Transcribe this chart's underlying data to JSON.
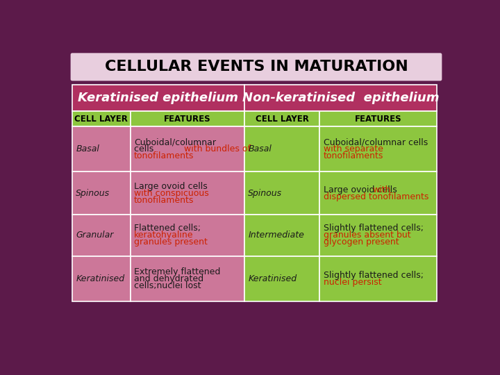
{
  "title": "CELLULAR EVENTS IN MATURATION",
  "title_bg": "#e8cede",
  "page_bg": "#5c1a4a",
  "header1": "Keratinised epithelium",
  "header2": "Non-keratinised  epithelium",
  "header_bg": "#b03060",
  "header_text_color": "white",
  "col_headers": [
    "CELL LAYER",
    "FEATURES",
    "CELL LAYER",
    "FEATURES"
  ],
  "col_header_bg": "#8dc63f",
  "col_header_text": "black",
  "left_col_bg": "#cc7799",
  "right_col_bg": "#8dc63f",
  "border_color": "white",
  "red_color": "#cc2200",
  "black_color": "#1a1a1a",
  "rows": [
    {
      "col1": "Basal",
      "col2_lines": [
        {
          "text": "Cuboidal/columnar",
          "color": "black"
        },
        {
          "text": "cells ",
          "color": "black",
          "append": "with bundles of",
          "append_color": "red"
        },
        {
          "text": "tonofilaments",
          "color": "red"
        }
      ],
      "col3": "Basal",
      "col4_lines": [
        {
          "text": "Cuboidal/columnar cells",
          "color": "black"
        },
        {
          "text": "with separate",
          "color": "red"
        },
        {
          "text": "tonofilaments",
          "color": "red"
        }
      ]
    },
    {
      "col1": "Spinous",
      "col2_lines": [
        {
          "text": "Large ovoid cells",
          "color": "black"
        },
        {
          "text": "with conspicuous",
          "color": "red"
        },
        {
          "text": "tonofilaments",
          "color": "red"
        }
      ],
      "col3": "Spinous",
      "col4_lines": [
        {
          "text": "Large ovoid cells ",
          "color": "black",
          "append": "with",
          "append_color": "red"
        },
        {
          "text": "dispersed tonofilaments",
          "color": "red"
        }
      ]
    },
    {
      "col1": "Granular",
      "col2_lines": [
        {
          "text": "Flattened cells;",
          "color": "black"
        },
        {
          "text": "keratohyaline",
          "color": "red"
        },
        {
          "text": "granules present",
          "color": "red"
        }
      ],
      "col3": "Intermediate",
      "col4_lines": [
        {
          "text": "Slightly flattened cells;",
          "color": "black"
        },
        {
          "text": "granules absent but",
          "color": "red"
        },
        {
          "text": "glycogen present",
          "color": "red"
        }
      ]
    },
    {
      "col1": "Keratinised",
      "col2_lines": [
        {
          "text": "Extremely flattened",
          "color": "black"
        },
        {
          "text": "and dehydrated",
          "color": "black"
        },
        {
          "text": "cells;nuclei lost",
          "color": "black"
        }
      ],
      "col3": "Keratinised",
      "col4_lines": [
        {
          "text": "Slightly flattened cells;",
          "color": "black"
        },
        {
          "text": "nuclei persist",
          "color": "red"
        }
      ]
    }
  ]
}
